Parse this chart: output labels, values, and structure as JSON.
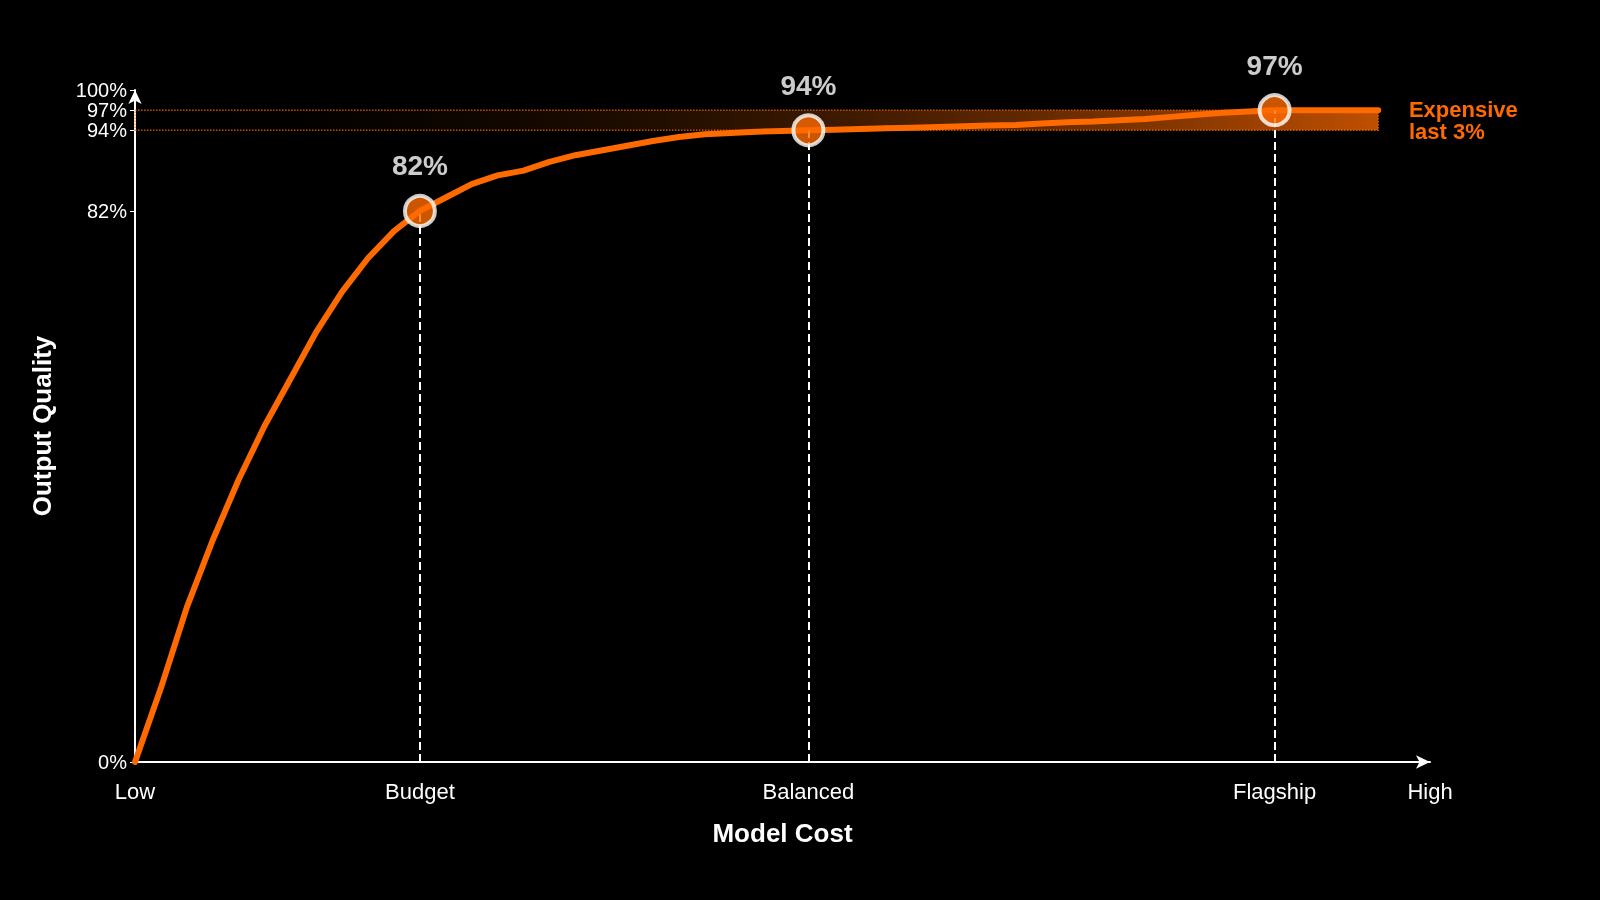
{
  "chart_data": {
    "type": "line",
    "xlabel": "Model Cost",
    "ylabel": "Output Quality",
    "categories": [
      "Low",
      null,
      null,
      null,
      null,
      null,
      null,
      null,
      null,
      null,
      null,
      "Budget",
      null,
      null,
      null,
      null,
      null,
      null,
      null,
      null,
      null,
      null,
      null,
      null,
      null,
      null,
      "Balanced",
      null,
      null,
      null,
      null,
      null,
      null,
      null,
      null,
      null,
      null,
      null,
      null,
      null,
      null,
      null,
      null,
      null,
      "Flagship",
      null,
      null,
      null,
      null,
      null,
      "High"
    ],
    "ylim": [
      0,
      100
    ],
    "yticks": [
      {
        "value": 0,
        "label": "0%"
      },
      {
        "value": 82,
        "label": "82%"
      },
      {
        "value": 94,
        "label": "94%"
      },
      {
        "value": 97,
        "label": "97%"
      },
      {
        "value": 100,
        "label": "100%"
      }
    ],
    "grid": false,
    "series": [
      {
        "color": "#ff6a00",
        "marker": "none",
        "values": [
          0,
          11,
          23,
          33,
          42,
          50,
          57,
          64,
          70,
          75,
          79,
          82,
          84,
          86,
          87.3,
          88,
          89.3,
          90.3,
          91,
          91.7,
          92.4,
          93,
          93.4,
          93.6,
          93.8,
          93.9,
          94,
          94.1,
          94.2,
          94.3,
          94.4,
          94.5,
          94.6,
          94.7,
          94.8,
          95,
          95.2,
          95.3,
          95.5,
          95.7,
          96,
          96.3,
          96.6,
          96.8,
          97,
          97,
          97,
          97,
          97,
          null,
          null
        ]
      },
      {
        "type": "scatter",
        "color": "#ff6a00",
        "marker": "circle",
        "x": [
          "Budget",
          "Balanced",
          "Flagship"
        ],
        "values": [
          82,
          94,
          97
        ],
        "value_labels": [
          "82%",
          "94%",
          "97%"
        ]
      }
    ],
    "ref_lines": [
      {
        "axis": "x",
        "value": "Budget",
        "color": "#ffffff",
        "line_style": "dashed"
      },
      {
        "axis": "x",
        "value": "Balanced",
        "color": "#ffffff",
        "line_style": "dashed"
      },
      {
        "axis": "x",
        "value": "Flagship",
        "color": "#ffffff",
        "line_style": "dashed"
      }
    ],
    "bands": [
      {
        "axis": "y",
        "from": 94,
        "to": 97,
        "label": "Expensive last 3%",
        "color": "#ff6a00"
      }
    ]
  }
}
